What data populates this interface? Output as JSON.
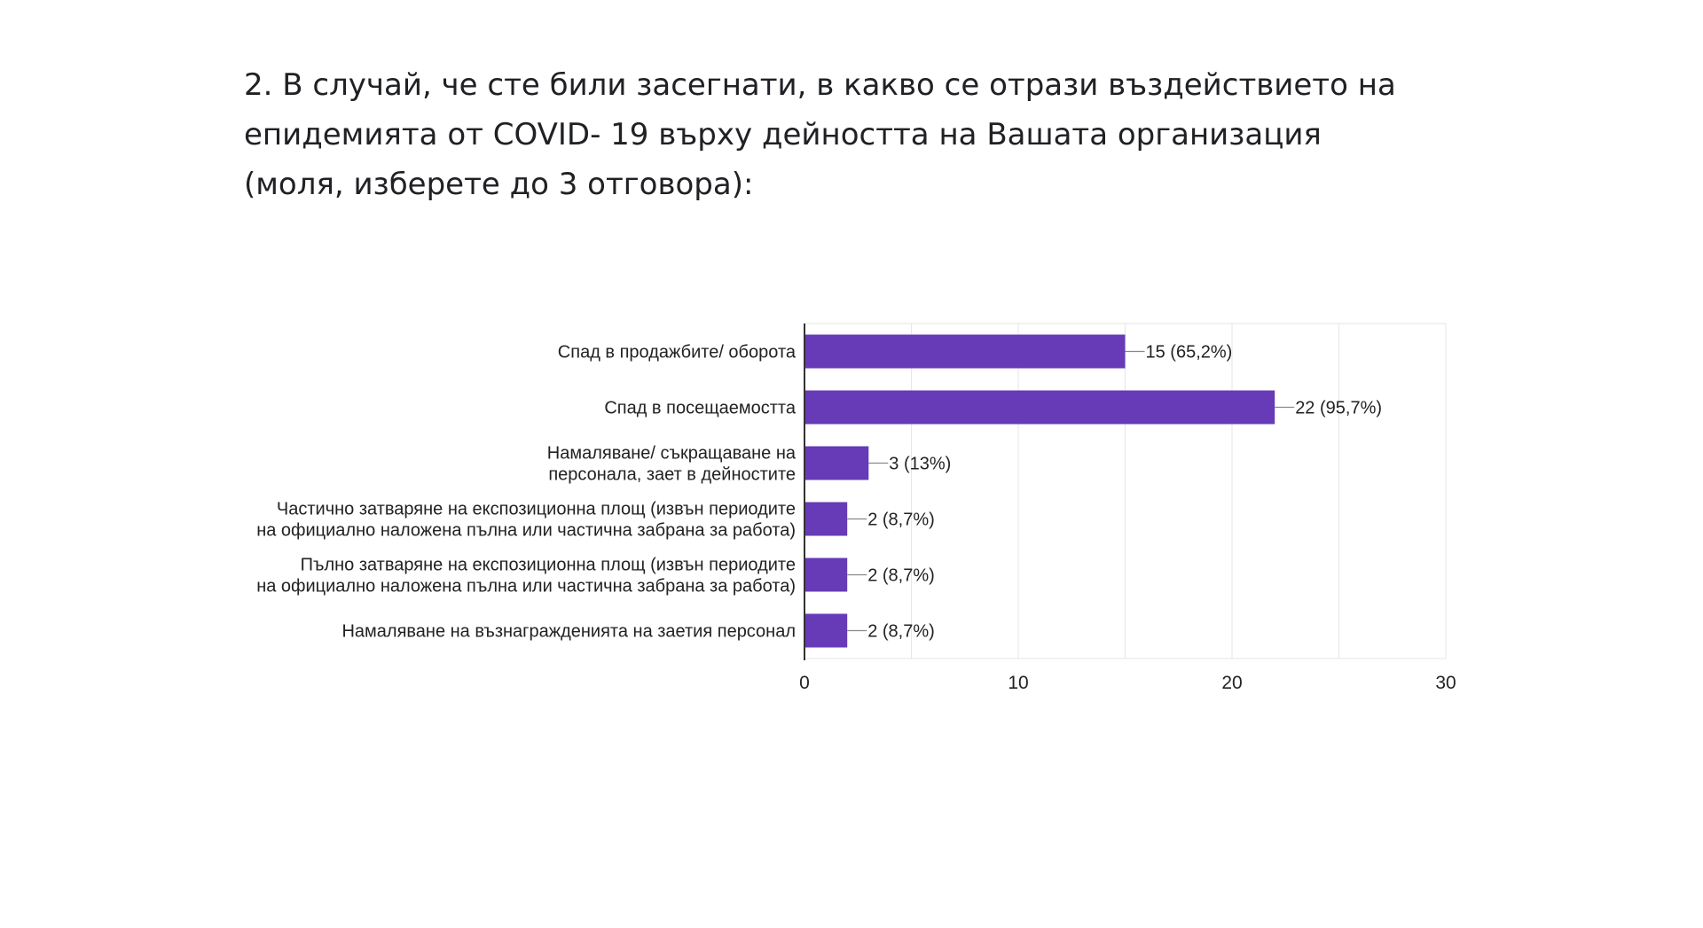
{
  "question": {
    "lines": [
      "2. В случай, че сте били засегнати, в какво се отрази въздействието на",
      "епидемията от COVID- 19 върху дейността на Вашата организация",
      "(моля, изберете до 3 отговора):"
    ]
  },
  "chart_data": {
    "type": "bar",
    "orientation": "horizontal",
    "categories": [
      [
        "Спад в продажбите/ оборота"
      ],
      [
        "Спад в посещаемостта"
      ],
      [
        "Намаляване/ съкращаване на",
        "персонала, зает в дейностите"
      ],
      [
        "Частично затваряне на експозиционна площ (извън периодите",
        "на официално наложена пълна или частична забрана за работа)"
      ],
      [
        "Пълно затваряне на експозиционна площ (извън периодите",
        "на официално наложена пълна или частична забрана за работа)"
      ],
      [
        "Намаляване на възнагражденията на заетия персонал"
      ]
    ],
    "values": [
      15,
      22,
      3,
      2,
      2,
      2
    ],
    "data_labels": [
      "15 (65,2%)",
      "22 (95,7%)",
      "3 (13%)",
      "2 (8,7%)",
      "2 (8,7%)",
      "2 (8,7%)"
    ],
    "xlim": [
      0,
      30
    ],
    "xticks": [
      0,
      10,
      20,
      30
    ],
    "grid": true,
    "bar_color": "#673ab7",
    "grid_color": "#e6e6e6",
    "axis_color": "#333333"
  }
}
